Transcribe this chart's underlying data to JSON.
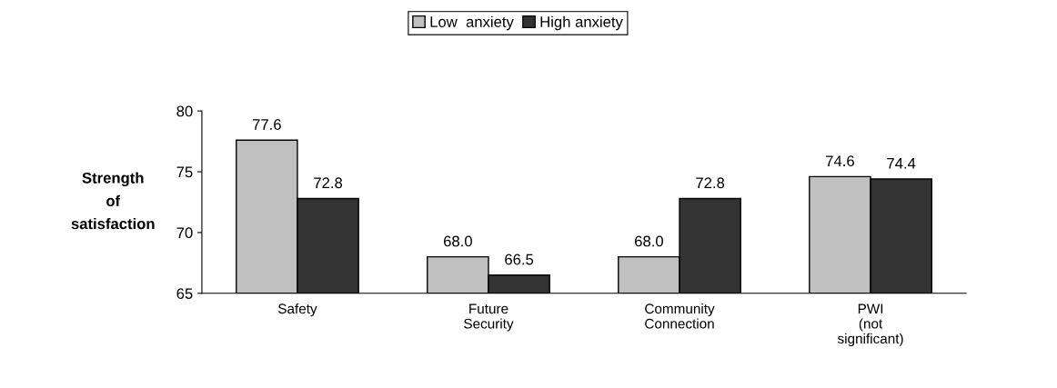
{
  "chart_data": {
    "type": "bar",
    "ylabel": "Strength\nof\nsatisfaction",
    "categories": [
      "Safety",
      "Future\nSecurity",
      "Community\nConnection",
      "PWI\n(not\nsignificant)"
    ],
    "series": [
      {
        "name": "Low  anxiety",
        "color": "#c0c0c0",
        "values": [
          77.6,
          68.0,
          68.0,
          74.6
        ],
        "value_labels": [
          "77.6",
          "68.0",
          "68.0",
          "74.6"
        ]
      },
      {
        "name": "High anxiety",
        "color": "#333333",
        "values": [
          72.8,
          66.5,
          72.8,
          74.4
        ],
        "value_labels": [
          "72.8",
          "66.5",
          "72.8",
          "74.4"
        ]
      }
    ],
    "ylim": [
      65,
      80
    ],
    "yticks": [
      65,
      70,
      75,
      80
    ],
    "grid": false,
    "legend": "top"
  }
}
